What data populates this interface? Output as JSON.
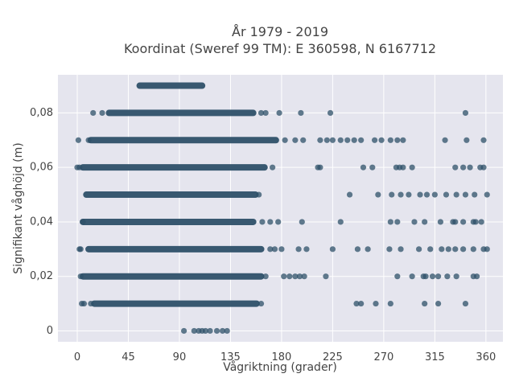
{
  "chart_data": {
    "type": "scatter",
    "title_lines": [
      "År 1979 - 2019",
      "Koordinat (Sweref 99 TM): E 360598, N 6167712"
    ],
    "xlabel": "Vågriktning (grader)",
    "ylabel": "Signifikant våghöjd (m)",
    "xlim": [
      -17,
      375
    ],
    "ylim": [
      -0.004,
      0.094
    ],
    "xticks": [
      0,
      45,
      90,
      135,
      180,
      225,
      270,
      315,
      360
    ],
    "yticks": [
      0,
      0.02,
      0.04,
      0.06,
      0.08
    ],
    "ytick_labels": [
      "0",
      "0,02",
      "0,04",
      "0,06",
      "0,08"
    ],
    "grid": true,
    "background": "#e5e5ee",
    "marker_color": "#2e5068",
    "series": [
      {
        "dense_ranges": [
          {
            "y": 0.09,
            "x_from": 55,
            "x_to": 110
          },
          {
            "y": 0.08,
            "x_from": 28,
            "x_to": 155
          },
          {
            "y": 0.07,
            "x_from": 12,
            "x_to": 175
          },
          {
            "y": 0.06,
            "x_from": 5,
            "x_to": 165
          },
          {
            "y": 0.05,
            "x_from": 8,
            "x_to": 157
          },
          {
            "y": 0.04,
            "x_from": 5,
            "x_to": 155
          },
          {
            "y": 0.03,
            "x_from": 10,
            "x_to": 162
          },
          {
            "y": 0.02,
            "x_from": 5,
            "x_to": 162
          },
          {
            "y": 0.01,
            "x_from": 15,
            "x_to": 158
          }
        ],
        "points": [
          [
            14,
            0.08
          ],
          [
            22,
            0.08
          ],
          [
            162,
            0.08
          ],
          [
            166,
            0.08
          ],
          [
            178,
            0.08
          ],
          [
            197,
            0.08
          ],
          [
            223,
            0.08
          ],
          [
            342,
            0.08
          ],
          [
            1,
            0.07
          ],
          [
            10,
            0.07
          ],
          [
            183,
            0.07
          ],
          [
            192,
            0.07
          ],
          [
            199,
            0.07
          ],
          [
            214,
            0.07
          ],
          [
            220,
            0.07
          ],
          [
            225,
            0.07
          ],
          [
            232,
            0.07
          ],
          [
            238,
            0.07
          ],
          [
            244,
            0.07
          ],
          [
            250,
            0.07
          ],
          [
            262,
            0.07
          ],
          [
            268,
            0.07
          ],
          [
            276,
            0.07
          ],
          [
            282,
            0.07
          ],
          [
            287,
            0.07
          ],
          [
            324,
            0.07
          ],
          [
            343,
            0.07
          ],
          [
            358,
            0.07
          ],
          [
            0,
            0.06
          ],
          [
            2,
            0.06
          ],
          [
            172,
            0.06
          ],
          [
            212,
            0.06
          ],
          [
            214,
            0.06
          ],
          [
            252,
            0.06
          ],
          [
            260,
            0.06
          ],
          [
            281,
            0.06
          ],
          [
            284,
            0.06
          ],
          [
            287,
            0.06
          ],
          [
            295,
            0.06
          ],
          [
            333,
            0.06
          ],
          [
            340,
            0.06
          ],
          [
            346,
            0.06
          ],
          [
            355,
            0.06
          ],
          [
            358,
            0.06
          ],
          [
            160,
            0.05
          ],
          [
            240,
            0.05
          ],
          [
            265,
            0.05
          ],
          [
            277,
            0.05
          ],
          [
            285,
            0.05
          ],
          [
            292,
            0.05
          ],
          [
            302,
            0.05
          ],
          [
            308,
            0.05
          ],
          [
            315,
            0.05
          ],
          [
            325,
            0.05
          ],
          [
            334,
            0.05
          ],
          [
            342,
            0.05
          ],
          [
            350,
            0.05
          ],
          [
            361,
            0.05
          ],
          [
            5,
            0.04
          ],
          [
            163,
            0.04
          ],
          [
            170,
            0.04
          ],
          [
            177,
            0.04
          ],
          [
            198,
            0.04
          ],
          [
            232,
            0.04
          ],
          [
            276,
            0.04
          ],
          [
            282,
            0.04
          ],
          [
            297,
            0.04
          ],
          [
            306,
            0.04
          ],
          [
            320,
            0.04
          ],
          [
            331,
            0.04
          ],
          [
            333,
            0.04
          ],
          [
            340,
            0.04
          ],
          [
            349,
            0.04
          ],
          [
            351,
            0.04
          ],
          [
            356,
            0.04
          ],
          [
            2,
            0.03
          ],
          [
            3,
            0.03
          ],
          [
            170,
            0.03
          ],
          [
            174,
            0.03
          ],
          [
            180,
            0.03
          ],
          [
            195,
            0.03
          ],
          [
            202,
            0.03
          ],
          [
            225,
            0.03
          ],
          [
            247,
            0.03
          ],
          [
            256,
            0.03
          ],
          [
            275,
            0.03
          ],
          [
            285,
            0.03
          ],
          [
            301,
            0.03
          ],
          [
            311,
            0.03
          ],
          [
            321,
            0.03
          ],
          [
            327,
            0.03
          ],
          [
            333,
            0.03
          ],
          [
            340,
            0.03
          ],
          [
            349,
            0.03
          ],
          [
            358,
            0.03
          ],
          [
            361,
            0.03
          ],
          [
            3,
            0.02
          ],
          [
            166,
            0.02
          ],
          [
            182,
            0.02
          ],
          [
            187,
            0.02
          ],
          [
            192,
            0.02
          ],
          [
            196,
            0.02
          ],
          [
            200,
            0.02
          ],
          [
            219,
            0.02
          ],
          [
            282,
            0.02
          ],
          [
            295,
            0.02
          ],
          [
            305,
            0.02
          ],
          [
            307,
            0.02
          ],
          [
            313,
            0.02
          ],
          [
            318,
            0.02
          ],
          [
            326,
            0.02
          ],
          [
            334,
            0.02
          ],
          [
            349,
            0.02
          ],
          [
            352,
            0.02
          ],
          [
            4,
            0.01
          ],
          [
            6,
            0.01
          ],
          [
            12,
            0.01
          ],
          [
            162,
            0.01
          ],
          [
            246,
            0.01
          ],
          [
            250,
            0.01
          ],
          [
            263,
            0.01
          ],
          [
            276,
            0.01
          ],
          [
            306,
            0.01
          ],
          [
            318,
            0.01
          ],
          [
            342,
            0.01
          ],
          [
            94,
            0
          ],
          [
            103,
            0
          ],
          [
            107,
            0
          ],
          [
            110,
            0
          ],
          [
            113,
            0
          ],
          [
            117,
            0
          ],
          [
            123,
            0
          ],
          [
            128,
            0
          ],
          [
            132,
            0
          ]
        ]
      }
    ]
  }
}
